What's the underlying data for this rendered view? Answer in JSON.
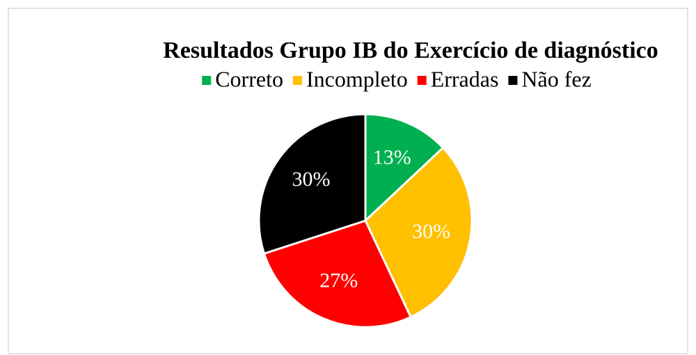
{
  "chart_data": {
    "type": "pie",
    "title": "Resultados Grupo IB do Exercício de diagnóstico",
    "categories": [
      "Correto",
      "Incompleto",
      "Erradas",
      "Não fez"
    ],
    "values": [
      13,
      30,
      27,
      30
    ],
    "value_labels": [
      "13%",
      "30%",
      "27%",
      "30%"
    ],
    "colors": [
      "#00b050",
      "#ffc000",
      "#ff0000",
      "#000000"
    ],
    "legend": "top"
  }
}
